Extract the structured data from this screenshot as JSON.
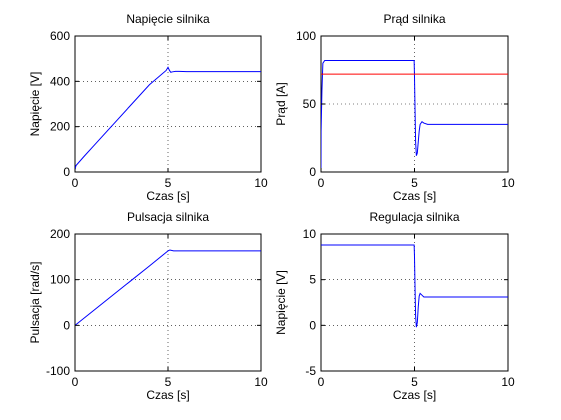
{
  "figure": {
    "background": "#ffffff"
  },
  "chart_data": [
    {
      "type": "line",
      "title": "Napięcie silnika",
      "xlabel": "Czas [s]",
      "ylabel": "Napięcie [V]",
      "xlim": [
        0,
        10
      ],
      "ylim": [
        0,
        600
      ],
      "xticks": [
        0,
        5,
        10
      ],
      "yticks": [
        0,
        200,
        400,
        600
      ],
      "grid": true,
      "series": [
        {
          "color": "#0000ff",
          "x": [
            0,
            0.05,
            0.5,
            1,
            2,
            3,
            4,
            4.9,
            5.0,
            5.08,
            5.15,
            5.25,
            5.4,
            5.6,
            6,
            10
          ],
          "y": [
            10,
            28,
            70,
            115,
            205,
            295,
            385,
            448,
            462,
            448,
            440,
            442,
            444,
            444,
            443,
            443
          ]
        }
      ]
    },
    {
      "type": "line",
      "title": "Prąd silnika",
      "xlabel": "Czas [s]",
      "ylabel": "Prąd [A]",
      "xlim": [
        0,
        10
      ],
      "ylim": [
        0,
        100
      ],
      "xticks": [
        0,
        5,
        10
      ],
      "yticks": [
        0,
        50,
        100
      ],
      "grid": true,
      "series": [
        {
          "color": "#0000ff",
          "x": [
            0,
            0.005,
            0.05,
            0.1,
            0.2,
            4.98,
            5.0,
            5.03,
            5.06,
            5.1,
            5.15,
            5.2,
            5.25,
            5.3,
            5.4,
            5.5,
            5.7,
            6,
            10
          ],
          "y": [
            0,
            30,
            60,
            80,
            82,
            82,
            70,
            45,
            22,
            12,
            14,
            22,
            30,
            35,
            37,
            36,
            35,
            35,
            35
          ]
        },
        {
          "color": "#ff0000",
          "x": [
            0,
            10
          ],
          "y": [
            72,
            72
          ]
        }
      ]
    },
    {
      "type": "line",
      "title": "Pulsacja silnika",
      "xlabel": "Czas [s]",
      "ylabel": "Pulsacja [rad/s]",
      "xlim": [
        0,
        10
      ],
      "ylim": [
        -100,
        200
      ],
      "xticks": [
        0,
        5,
        10
      ],
      "yticks": [
        -100,
        0,
        100,
        200
      ],
      "grid": true,
      "series": [
        {
          "color": "#0000ff",
          "x": [
            0,
            1,
            2,
            3,
            4,
            5,
            5.1,
            5.3,
            10
          ],
          "y": [
            0,
            32.5,
            65,
            97.5,
            130,
            163,
            165,
            163,
            163
          ]
        }
      ]
    },
    {
      "type": "line",
      "title": "Regulacja silnika",
      "xlabel": "Czas [s]",
      "ylabel": "Napięcie [V]",
      "xlim": [
        0,
        10
      ],
      "ylim": [
        -5,
        10
      ],
      "xticks": [
        0,
        5,
        10
      ],
      "yticks": [
        -5,
        0,
        5,
        10
      ],
      "grid": true,
      "series": [
        {
          "color": "#0000ff",
          "x": [
            0,
            4.98,
            5.0,
            5.03,
            5.06,
            5.1,
            5.15,
            5.2,
            5.25,
            5.3,
            5.4,
            5.5,
            5.7,
            6,
            10
          ],
          "y": [
            8.8,
            8.8,
            7.5,
            4,
            1,
            -0.2,
            0.3,
            2,
            3.2,
            3.5,
            3.3,
            3.1,
            3.1,
            3.1,
            3.1
          ]
        }
      ]
    }
  ]
}
